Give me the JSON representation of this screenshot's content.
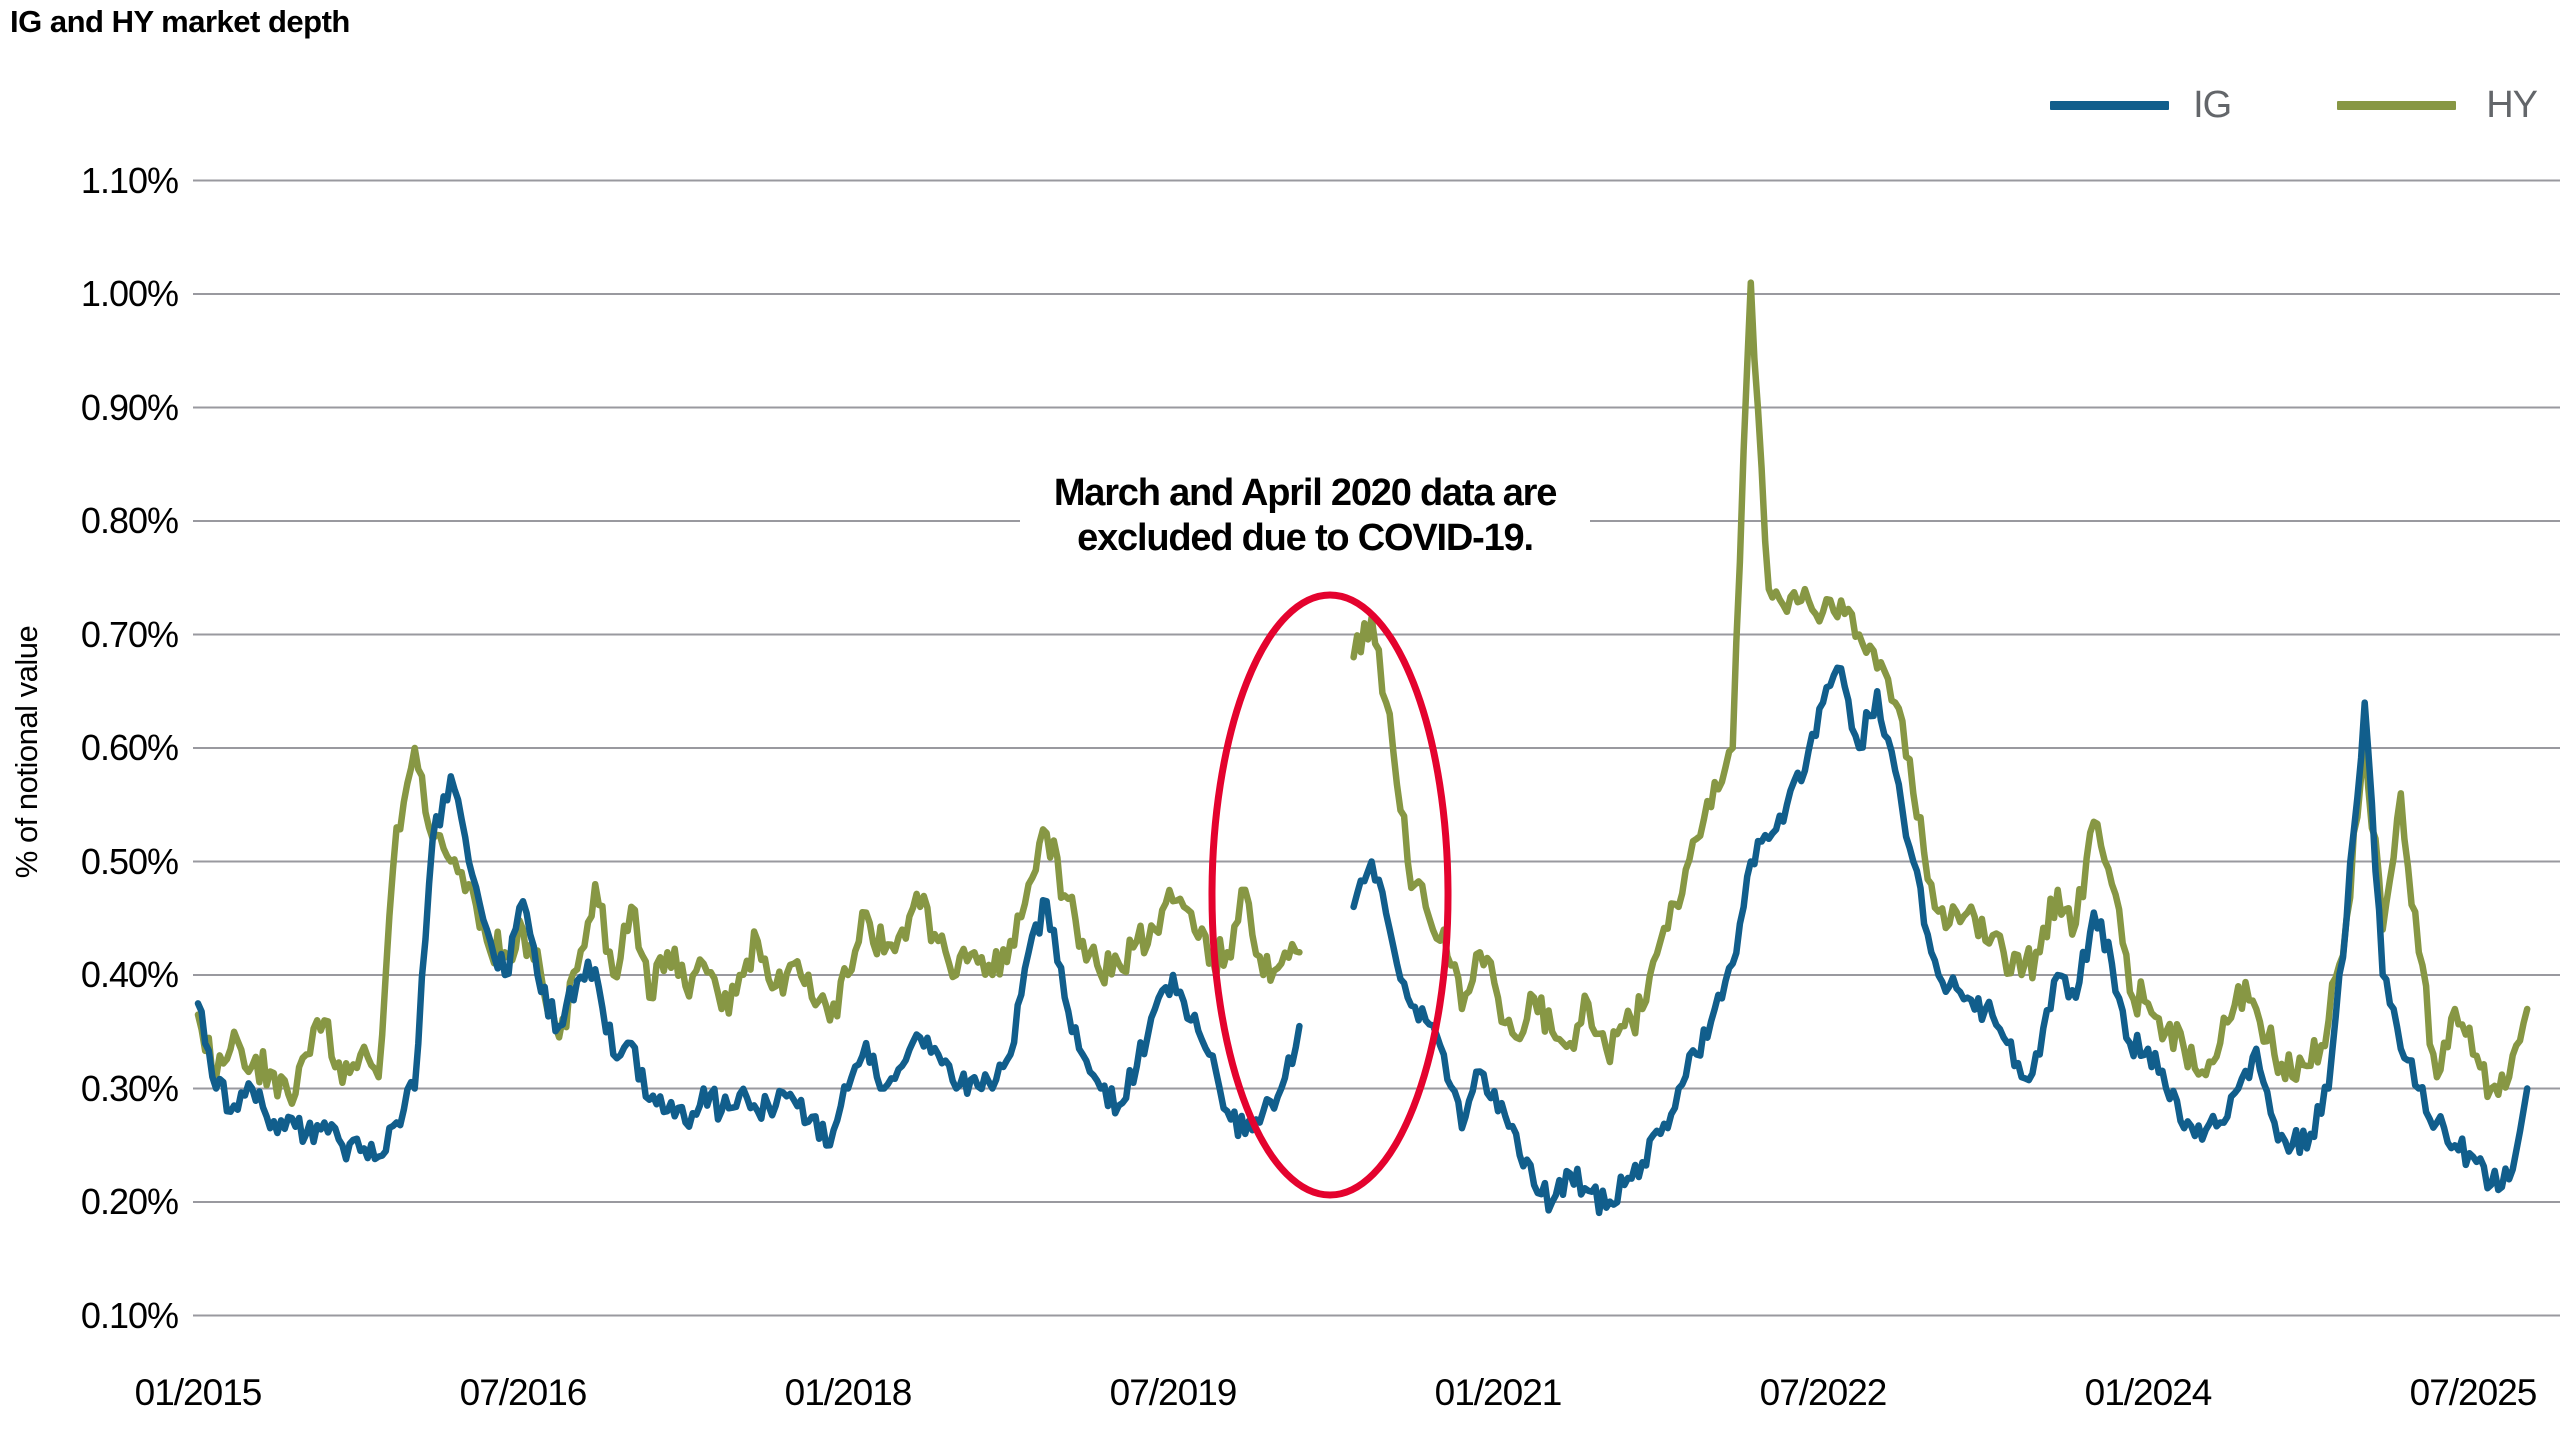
{
  "title": "IG and HY market depth",
  "legend": {
    "items": [
      {
        "label": "IG",
        "color": "#115e8c"
      },
      {
        "label": "HY",
        "color": "#879744"
      }
    ],
    "label_color": "#63666a"
  },
  "annotation": {
    "line1": "March and April 2020 data are",
    "line2": "excluded due to COVID-19.",
    "bg_color": "#ffffff",
    "text_color": "#000000"
  },
  "highlight_ellipse": {
    "meaning": "circles the excluded March-April 2020 gap",
    "color": "#e4032e"
  },
  "colors": {
    "ig_line": "#115e8c",
    "hy_line": "#879744",
    "gridline": "#63646d",
    "axis_text": "#000000"
  },
  "chart_data": {
    "type": "line",
    "title": "IG and HY market depth",
    "xlabel": "",
    "ylabel": "% of notional value",
    "ylim": [
      0.1,
      1.1
    ],
    "y_ticks": [
      "0.10%",
      "0.20%",
      "0.30%",
      "0.40%",
      "0.50%",
      "0.60%",
      "0.70%",
      "0.80%",
      "0.90%",
      "1.00%",
      "1.10%"
    ],
    "x_ticks": [
      "01/2015",
      "07/2016",
      "01/2018",
      "07/2019",
      "01/2021",
      "07/2022",
      "01/2024",
      "07/2025"
    ],
    "grid": "horizontal-only",
    "legend_position": "top-right",
    "gap_note": "March and April 2020 data are excluded due to COVID-19.",
    "units": "percent of notional value",
    "columns": [
      "month",
      "IG",
      "HY"
    ],
    "rows": [
      [
        "2015-01",
        0.375,
        0.365
      ],
      [
        "2015-02",
        0.3,
        0.31
      ],
      [
        "2015-03",
        0.285,
        0.35
      ],
      [
        "2015-04",
        0.3,
        0.32
      ],
      [
        "2015-05",
        0.265,
        0.315
      ],
      [
        "2015-06",
        0.275,
        0.295
      ],
      [
        "2015-07",
        0.26,
        0.33
      ],
      [
        "2015-08",
        0.27,
        0.36
      ],
      [
        "2015-09",
        0.25,
        0.305
      ],
      [
        "2015-10",
        0.245,
        0.33
      ],
      [
        "2015-11",
        0.24,
        0.31
      ],
      [
        "2015-12",
        0.27,
        0.53
      ],
      [
        "2016-01",
        0.3,
        0.6
      ],
      [
        "2016-02",
        0.52,
        0.52
      ],
      [
        "2016-03",
        0.575,
        0.5
      ],
      [
        "2016-04",
        0.5,
        0.48
      ],
      [
        "2016-05",
        0.44,
        0.43
      ],
      [
        "2016-06",
        0.4,
        0.42
      ],
      [
        "2016-07",
        0.465,
        0.44
      ],
      [
        "2016-08",
        0.385,
        0.4
      ],
      [
        "2016-09",
        0.355,
        0.345
      ],
      [
        "2016-10",
        0.395,
        0.405
      ],
      [
        "2016-11",
        0.405,
        0.48
      ],
      [
        "2016-12",
        0.33,
        0.4
      ],
      [
        "2017-01",
        0.34,
        0.46
      ],
      [
        "2017-02",
        0.29,
        0.38
      ],
      [
        "2017-03",
        0.28,
        0.42
      ],
      [
        "2017-04",
        0.27,
        0.39
      ],
      [
        "2017-05",
        0.3,
        0.41
      ],
      [
        "2017-06",
        0.28,
        0.37
      ],
      [
        "2017-07",
        0.295,
        0.4
      ],
      [
        "2017-08",
        0.28,
        0.43
      ],
      [
        "2017-09",
        0.285,
        0.39
      ],
      [
        "2017-10",
        0.29,
        0.41
      ],
      [
        "2017-11",
        0.275,
        0.38
      ],
      [
        "2017-12",
        0.25,
        0.36
      ],
      [
        "2018-01",
        0.3,
        0.4
      ],
      [
        "2018-02",
        0.34,
        0.455
      ],
      [
        "2018-03",
        0.3,
        0.42
      ],
      [
        "2018-04",
        0.32,
        0.44
      ],
      [
        "2018-05",
        0.345,
        0.46
      ],
      [
        "2018-06",
        0.33,
        0.43
      ],
      [
        "2018-07",
        0.3,
        0.4
      ],
      [
        "2018-08",
        0.31,
        0.42
      ],
      [
        "2018-09",
        0.3,
        0.4
      ],
      [
        "2018-10",
        0.33,
        0.43
      ],
      [
        "2018-11",
        0.42,
        0.48
      ],
      [
        "2018-12",
        0.465,
        0.525
      ],
      [
        "2019-01",
        0.38,
        0.47
      ],
      [
        "2019-02",
        0.33,
        0.43
      ],
      [
        "2019-03",
        0.3,
        0.4
      ],
      [
        "2019-04",
        0.285,
        0.41
      ],
      [
        "2019-05",
        0.32,
        0.43
      ],
      [
        "2019-06",
        0.37,
        0.44
      ],
      [
        "2019-07",
        0.4,
        0.465
      ],
      [
        "2019-08",
        0.36,
        0.455
      ],
      [
        "2019-09",
        0.33,
        0.41
      ],
      [
        "2019-10",
        0.28,
        0.42
      ],
      [
        "2019-11",
        0.26,
        0.475
      ],
      [
        "2019-12",
        0.28,
        0.4
      ],
      [
        "2020-01",
        0.3,
        0.41
      ],
      [
        "2020-02",
        0.355,
        0.42
      ],
      [
        "2020-03",
        null,
        null
      ],
      [
        "2020-04",
        null,
        null
      ],
      [
        "2020-05",
        0.46,
        0.68
      ],
      [
        "2020-06",
        0.5,
        0.715
      ],
      [
        "2020-07",
        0.44,
        0.63
      ],
      [
        "2020-08",
        0.38,
        0.5
      ],
      [
        "2020-09",
        0.36,
        0.46
      ],
      [
        "2020-10",
        0.33,
        0.44
      ],
      [
        "2020-11",
        0.265,
        0.37
      ],
      [
        "2020-12",
        0.315,
        0.42
      ],
      [
        "2021-01",
        0.28,
        0.38
      ],
      [
        "2021-02",
        0.26,
        0.345
      ],
      [
        "2021-03",
        0.215,
        0.38
      ],
      [
        "2021-04",
        0.2,
        0.35
      ],
      [
        "2021-05",
        0.225,
        0.34
      ],
      [
        "2021-06",
        0.21,
        0.375
      ],
      [
        "2021-07",
        0.195,
        0.335
      ],
      [
        "2021-08",
        0.215,
        0.355
      ],
      [
        "2021-09",
        0.235,
        0.37
      ],
      [
        "2021-10",
        0.26,
        0.43
      ],
      [
        "2021-11",
        0.3,
        0.46
      ],
      [
        "2021-12",
        0.33,
        0.52
      ],
      [
        "2022-01",
        0.37,
        0.57
      ],
      [
        "2022-02",
        0.41,
        0.6
      ],
      [
        "2022-03",
        0.5,
        1.01
      ],
      [
        "2022-04",
        0.52,
        0.74
      ],
      [
        "2022-05",
        0.55,
        0.72
      ],
      [
        "2022-06",
        0.58,
        0.74
      ],
      [
        "2022-07",
        0.64,
        0.72
      ],
      [
        "2022-08",
        0.67,
        0.73
      ],
      [
        "2022-09",
        0.6,
        0.7
      ],
      [
        "2022-10",
        0.65,
        0.67
      ],
      [
        "2022-11",
        0.58,
        0.64
      ],
      [
        "2022-12",
        0.5,
        0.56
      ],
      [
        "2023-01",
        0.42,
        0.48
      ],
      [
        "2023-02",
        0.39,
        0.445
      ],
      [
        "2023-03",
        0.38,
        0.455
      ],
      [
        "2023-04",
        0.37,
        0.43
      ],
      [
        "2023-05",
        0.345,
        0.42
      ],
      [
        "2023-06",
        0.31,
        0.4
      ],
      [
        "2023-07",
        0.33,
        0.42
      ],
      [
        "2023-08",
        0.4,
        0.475
      ],
      [
        "2023-09",
        0.38,
        0.445
      ],
      [
        "2023-10",
        0.455,
        0.535
      ],
      [
        "2023-11",
        0.41,
        0.48
      ],
      [
        "2023-12",
        0.34,
        0.385
      ],
      [
        "2024-01",
        0.335,
        0.375
      ],
      [
        "2024-02",
        0.3,
        0.35
      ],
      [
        "2024-03",
        0.265,
        0.335
      ],
      [
        "2024-04",
        0.255,
        0.315
      ],
      [
        "2024-05",
        0.27,
        0.34
      ],
      [
        "2024-06",
        0.3,
        0.39
      ],
      [
        "2024-07",
        0.335,
        0.37
      ],
      [
        "2024-08",
        0.27,
        0.33
      ],
      [
        "2024-09",
        0.25,
        0.31
      ],
      [
        "2024-10",
        0.26,
        0.32
      ],
      [
        "2024-11",
        0.3,
        0.36
      ],
      [
        "2024-12",
        0.45,
        0.45
      ],
      [
        "2025-01",
        0.64,
        0.61
      ],
      [
        "2025-02",
        0.4,
        0.44
      ],
      [
        "2025-03",
        0.335,
        0.56
      ],
      [
        "2025-04",
        0.3,
        0.42
      ],
      [
        "2025-05",
        0.27,
        0.31
      ],
      [
        "2025-06",
        0.25,
        0.37
      ],
      [
        "2025-07",
        0.24,
        0.33
      ],
      [
        "2025-08",
        0.215,
        0.3
      ],
      [
        "2025-09",
        0.22,
        0.31
      ],
      [
        "2025-10",
        0.3,
        0.37
      ]
    ]
  }
}
